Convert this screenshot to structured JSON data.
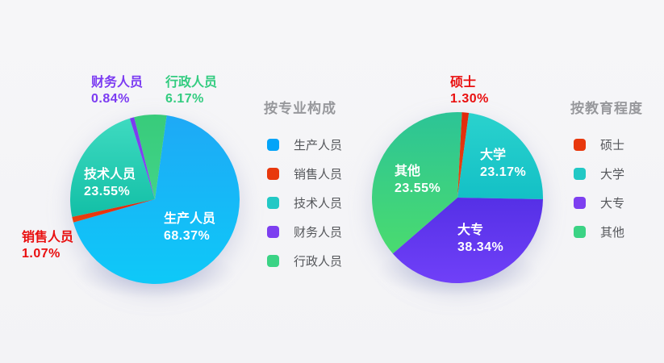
{
  "page": {
    "background_color": "#f4f4f6",
    "description": "Two pie charts: staff composition by profession and by education level"
  },
  "chart_data": [
    {
      "type": "pie",
      "legend_title": "按专业构成",
      "legend_position": "right",
      "start_angle_deg": 8,
      "slices": [
        {
          "name": "生产人员",
          "value": 68.37,
          "percent_label": "68.37%",
          "label_placement": "inside",
          "color_top": "#1ea9f6",
          "color_bottom": "#0ec9f8",
          "legend_color": "#03a4f8",
          "text_color": "#ffffff"
        },
        {
          "name": "销售人员",
          "value": 1.07,
          "percent_label": "1.07%",
          "label_placement": "outside",
          "color_top": "#e6200c",
          "color_bottom": "#e9440f",
          "legend_color": "#e8380d",
          "text_color": "#e90f0f"
        },
        {
          "name": "技术人员",
          "value": 23.55,
          "percent_label": "23.55%",
          "label_placement": "inside",
          "color_top": "#3edac0",
          "color_bottom": "#12bfa6",
          "legend_color": "#22c8c5",
          "text_color": "#ffffff"
        },
        {
          "name": "财务人员",
          "value": 0.84,
          "percent_label": "0.84%",
          "label_placement": "outside",
          "color_top": "#7a3af0",
          "color_bottom": "#8a4af4",
          "legend_color": "#7d3ff0",
          "text_color": "#7b3bf2"
        },
        {
          "name": "行政人员",
          "value": 6.17,
          "percent_label": "6.17%",
          "label_placement": "outside",
          "color_top": "#38cb7b",
          "color_bottom": "#42d488",
          "legend_color": "#3bd385",
          "text_color": "#33cc80"
        }
      ]
    },
    {
      "type": "pie",
      "legend_title": "按教育程度",
      "legend_position": "right",
      "start_angle_deg": 3,
      "slices": [
        {
          "name": "硕士",
          "value": 1.3,
          "percent_label": "1.30%",
          "label_placement": "outside",
          "color_top": "#e1280c",
          "color_bottom": "#e84b10",
          "legend_color": "#e8380d",
          "text_color": "#e90f0f"
        },
        {
          "name": "大学",
          "value": 23.17,
          "percent_label": "23.17%",
          "label_placement": "inside",
          "color_top": "#2ad2cd",
          "color_bottom": "#13c0c6",
          "legend_color": "#22c8c5",
          "text_color": "#ffffff"
        },
        {
          "name": "大专",
          "value": 38.34,
          "percent_label": "38.34%",
          "label_placement": "inside",
          "color_top": "#5530e6",
          "color_bottom": "#7040f8",
          "legend_color": "#7d3ff0",
          "text_color": "#ffffff"
        },
        {
          "name": "其他",
          "value": 23.55,
          "percent_label": "23.55%",
          "label_placement": "inside",
          "color_top": "#2cc496",
          "color_bottom": "#4adb6f",
          "legend_color": "#3bd385",
          "text_color": "#ffffff"
        }
      ]
    }
  ]
}
